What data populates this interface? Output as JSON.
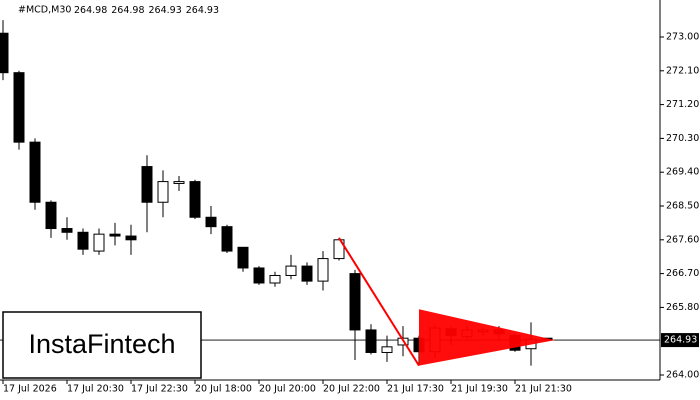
{
  "chart_data": {
    "type": "candlestick",
    "title": "#MCD,M30",
    "header_values": [
      264.98,
      264.98,
      264.93,
      264.93
    ],
    "watermark": "InstaFintech",
    "categories": [
      "17 Jul 2026",
      null,
      null,
      null,
      "17 Jul 20:30",
      null,
      null,
      null,
      "17 Jul 22:30",
      null,
      null,
      null,
      "20 Jul 18:00",
      null,
      null,
      null,
      "20 Jul 20:00",
      null,
      null,
      null,
      "20 Jul 22:00",
      null,
      null,
      null,
      "21 Jul 17:30",
      null,
      null,
      null,
      "21 Jul 19:30",
      null,
      null,
      null,
      "21 Jul 21:30",
      null,
      null
    ],
    "open": [
      273.1,
      272.05,
      270.2,
      268.6,
      267.9,
      267.8,
      267.3,
      267.75,
      267.7,
      269.55,
      268.6,
      269.1,
      269.15,
      268.2,
      267.95,
      267.4,
      266.85,
      266.45,
      266.65,
      266.9,
      266.5,
      267.1,
      266.7,
      265.2,
      264.6,
      264.8,
      264.98,
      264.62,
      265.23,
      265.02,
      265.15,
      265.2,
      265.05,
      264.7,
      264.98
    ],
    "high": [
      273.45,
      272.1,
      270.3,
      268.65,
      268.2,
      267.9,
      267.9,
      268.05,
      268.0,
      269.85,
      269.45,
      269.3,
      269.2,
      268.5,
      268.0,
      267.4,
      266.9,
      266.75,
      267.2,
      267.0,
      267.3,
      267.65,
      266.8,
      265.35,
      265.05,
      265.3,
      265.05,
      265.33,
      265.3,
      265.3,
      265.27,
      265.3,
      265.1,
      265.4,
      264.98
    ],
    "low": [
      271.85,
      270.0,
      268.4,
      267.65,
      267.6,
      267.2,
      267.2,
      267.45,
      267.2,
      267.8,
      268.2,
      268.9,
      268.15,
      267.75,
      267.25,
      266.75,
      266.4,
      266.35,
      266.55,
      266.4,
      266.25,
      267.05,
      264.4,
      264.55,
      264.35,
      264.5,
      264.25,
      264.45,
      264.8,
      264.95,
      265.05,
      264.95,
      264.62,
      264.25,
      264.93
    ],
    "close": [
      272.05,
      270.2,
      268.6,
      267.9,
      267.8,
      267.35,
      267.75,
      267.7,
      267.6,
      268.6,
      269.15,
      269.15,
      268.2,
      267.95,
      267.3,
      266.85,
      266.45,
      266.65,
      266.9,
      266.5,
      267.1,
      267.6,
      265.2,
      264.6,
      264.75,
      264.98,
      264.62,
      265.25,
      265.05,
      265.2,
      265.2,
      265.1,
      264.66,
      264.95,
      264.93
    ],
    "up_color": "#ffffff",
    "down_color": "#000000",
    "current_price": 264.93,
    "ylim": [
      263.867,
      273.985
    ],
    "yticks": [
      {
        "value": 264.0,
        "label": "264.00"
      },
      {
        "value": 265.8,
        "label": "265.80"
      },
      {
        "value": 266.7,
        "label": "266.70"
      },
      {
        "value": 267.6,
        "label": "267.60"
      },
      {
        "value": 268.5,
        "label": "268.50"
      },
      {
        "value": 269.4,
        "label": "269.40"
      },
      {
        "value": 270.3,
        "label": "270.30"
      },
      {
        "value": 271.2,
        "label": "271.20"
      },
      {
        "value": 272.1,
        "label": "272.10"
      },
      {
        "value": 273.0,
        "label": "273.00"
      }
    ],
    "pattern_color": "#ff0000",
    "pattern_pole": {
      "x": [
        21,
        26
      ],
      "y": [
        267.65,
        264.25
      ]
    },
    "pattern_flag": {
      "x": [
        26,
        26,
        34.5
      ],
      "y": [
        265.75,
        264.25,
        264.93
      ]
    }
  }
}
